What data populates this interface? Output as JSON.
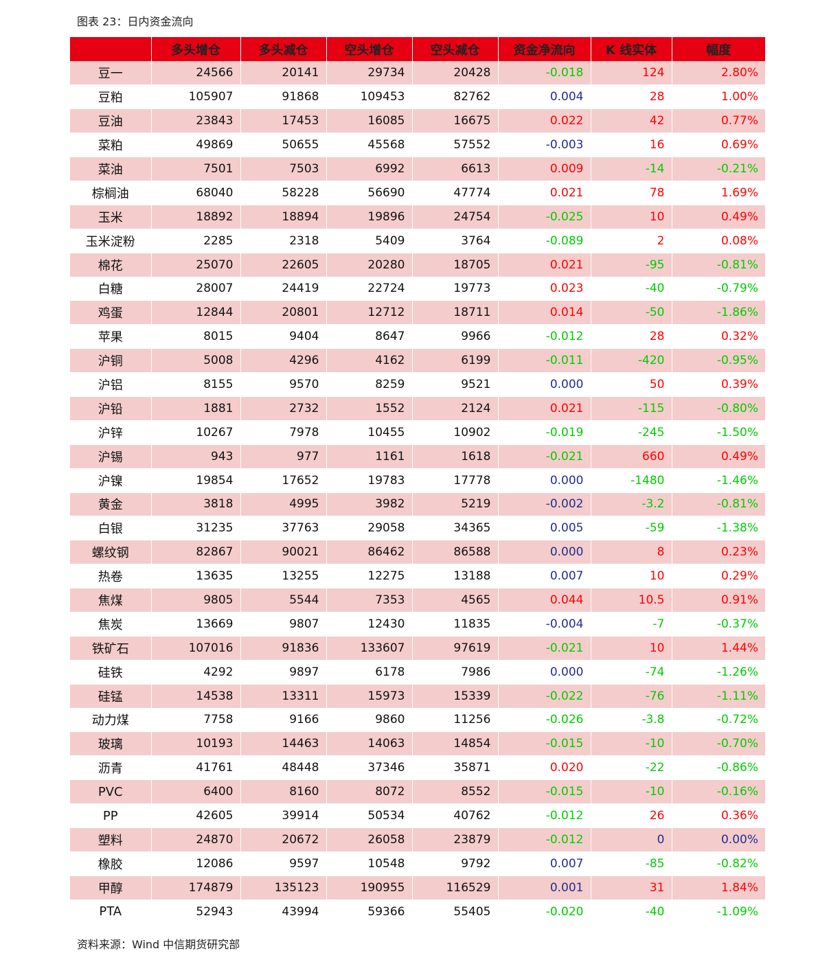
{
  "title": "图表 23：日内资金流向",
  "footer": "资料来源：Wind 中信期货研究部",
  "table": {
    "header": [
      "多头增仓",
      "多头减仓",
      "空头增仓",
      "空头减仓",
      "资金净流向",
      "K 线实体",
      "幅度"
    ],
    "header_color": "#e60012",
    "band_color": "#f4cccc",
    "rows": [
      [
        "豆一",
        "24566",
        "20141",
        "29734",
        "20428",
        "-0.018",
        "124",
        "2.80%"
      ],
      [
        "豆粕",
        "105907",
        "91868",
        "109453",
        "82762",
        "0.004",
        "28",
        "1.00%"
      ],
      [
        "豆油",
        "23843",
        "17453",
        "16085",
        "16675",
        "0.022",
        "42",
        "0.77%"
      ],
      [
        "菜粕",
        "49869",
        "50655",
        "45568",
        "57552",
        "-0.003",
        "16",
        "0.69%"
      ],
      [
        "菜油",
        "7501",
        "7503",
        "6992",
        "6613",
        "0.009",
        "-14",
        "-0.21%"
      ],
      [
        "棕榈油",
        "68040",
        "58228",
        "56690",
        "47774",
        "0.021",
        "78",
        "1.69%"
      ],
      [
        "玉米",
        "18892",
        "18894",
        "19896",
        "24754",
        "-0.025",
        "10",
        "0.49%"
      ],
      [
        "玉米淀粉",
        "2285",
        "2318",
        "5409",
        "3764",
        "-0.089",
        "2",
        "0.08%"
      ],
      [
        "棉花",
        "25070",
        "22605",
        "20280",
        "18705",
        "0.021",
        "-95",
        "-0.81%"
      ],
      [
        "白糖",
        "28007",
        "24419",
        "22724",
        "19773",
        "0.023",
        "-40",
        "-0.79%"
      ],
      [
        "鸡蛋",
        "12844",
        "20801",
        "12712",
        "18711",
        "0.014",
        "-50",
        "-1.86%"
      ],
      [
        "苹果",
        "8015",
        "9404",
        "8647",
        "9966",
        "-0.012",
        "28",
        "0.32%"
      ],
      [
        "沪铜",
        "5008",
        "4296",
        "4162",
        "6199",
        "-0.011",
        "-420",
        "-0.95%"
      ],
      [
        "沪铝",
        "8155",
        "9570",
        "8259",
        "9521",
        "0.000",
        "50",
        "0.39%"
      ],
      [
        "沪铅",
        "1881",
        "2732",
        "1552",
        "2124",
        "0.021",
        "-115",
        "-0.80%"
      ],
      [
        "沪锌",
        "10267",
        "7978",
        "10455",
        "10902",
        "-0.019",
        "-245",
        "-1.50%"
      ],
      [
        "沪锡",
        "943",
        "977",
        "1161",
        "1618",
        "-0.021",
        "660",
        "0.49%"
      ],
      [
        "沪镍",
        "19854",
        "17652",
        "19783",
        "17778",
        "0.000",
        "-1480",
        "-1.46%"
      ],
      [
        "黄金",
        "3818",
        "4995",
        "3982",
        "5219",
        "-0.002",
        "-3.2",
        "-0.81%"
      ],
      [
        "白银",
        "31235",
        "37763",
        "29058",
        "34365",
        "0.005",
        "-59",
        "-1.38%"
      ],
      [
        "螺纹钢",
        "82867",
        "90021",
        "86462",
        "86588",
        "0.000",
        "8",
        "0.23%"
      ],
      [
        "热卷",
        "13635",
        "13255",
        "12275",
        "13188",
        "0.007",
        "10",
        "0.29%"
      ],
      [
        "焦煤",
        "9805",
        "5544",
        "7353",
        "4565",
        "0.044",
        "10.5",
        "0.91%"
      ],
      [
        "焦炭",
        "13669",
        "9807",
        "12430",
        "11835",
        "-0.004",
        "-7",
        "-0.37%"
      ],
      [
        "铁矿石",
        "107016",
        "91836",
        "133607",
        "97619",
        "-0.021",
        "10",
        "1.44%"
      ],
      [
        "硅铁",
        "4292",
        "9897",
        "6178",
        "7986",
        "0.000",
        "-74",
        "-1.26%"
      ],
      [
        "硅锰",
        "14538",
        "13311",
        "15973",
        "15339",
        "-0.022",
        "-76",
        "-1.11%"
      ],
      [
        "动力煤",
        "7758",
        "9166",
        "9860",
        "11256",
        "-0.026",
        "-3.8",
        "-0.72%"
      ],
      [
        "玻璃",
        "10193",
        "14463",
        "14063",
        "14854",
        "-0.015",
        "-10",
        "-0.70%"
      ],
      [
        "沥青",
        "41761",
        "48448",
        "37346",
        "35871",
        "0.020",
        "-22",
        "-0.86%"
      ],
      [
        "PVC",
        "6400",
        "8160",
        "8072",
        "8552",
        "-0.015",
        "-10",
        "-0.16%"
      ],
      [
        "PP",
        "42605",
        "39914",
        "50534",
        "40762",
        "-0.012",
        "26",
        "0.36%"
      ],
      [
        "塑料",
        "24870",
        "20672",
        "26058",
        "23879",
        "-0.012",
        "0",
        "0.00%"
      ],
      [
        "橡胶",
        "12086",
        "9597",
        "10548",
        "9792",
        "0.007",
        "-85",
        "-0.82%"
      ],
      [
        "甲醇",
        "174879",
        "135123",
        "190955",
        "116529",
        "0.001",
        "31",
        "1.84%"
      ],
      [
        "PTA",
        "52943",
        "43994",
        "59366",
        "55405",
        "-0.020",
        "-40",
        "-1.09%"
      ]
    ],
    "row_colors": [
      [
        "#00cc00",
        "#ff0000",
        "#ff0000"
      ],
      [
        "#1f2f8f",
        "#ff0000",
        "#ff0000"
      ],
      [
        "#ff0000",
        "#ff0000",
        "#ff0000"
      ],
      [
        "#1f2f8f",
        "#ff0000",
        "#ff0000"
      ],
      [
        "#ff0000",
        "#00cc00",
        "#00cc00"
      ],
      [
        "#ff0000",
        "#ff0000",
        "#ff0000"
      ],
      [
        "#00cc00",
        "#ff0000",
        "#ff0000"
      ],
      [
        "#00cc00",
        "#ff0000",
        "#ff0000"
      ],
      [
        "#ff0000",
        "#00cc00",
        "#00cc00"
      ],
      [
        "#ff0000",
        "#00cc00",
        "#00cc00"
      ],
      [
        "#ff0000",
        "#00cc00",
        "#00cc00"
      ],
      [
        "#00cc00",
        "#ff0000",
        "#ff0000"
      ],
      [
        "#00cc00",
        "#00cc00",
        "#00cc00"
      ],
      [
        "#1f2f8f",
        "#ff0000",
        "#ff0000"
      ],
      [
        "#ff0000",
        "#00cc00",
        "#00cc00"
      ],
      [
        "#00cc00",
        "#00cc00",
        "#00cc00"
      ],
      [
        "#00cc00",
        "#ff0000",
        "#ff0000"
      ],
      [
        "#1f2f8f",
        "#00cc00",
        "#00cc00"
      ],
      [
        "#1f2f8f",
        "#00cc00",
        "#00cc00"
      ],
      [
        "#1f2f8f",
        "#00cc00",
        "#00cc00"
      ],
      [
        "#1f2f8f",
        "#ff0000",
        "#ff0000"
      ],
      [
        "#1f2f8f",
        "#ff0000",
        "#ff0000"
      ],
      [
        "#ff0000",
        "#ff0000",
        "#ff0000"
      ],
      [
        "#1f2f8f",
        "#00cc00",
        "#00cc00"
      ],
      [
        "#00cc00",
        "#ff0000",
        "#ff0000"
      ],
      [
        "#1f2f8f",
        "#00cc00",
        "#00cc00"
      ],
      [
        "#00cc00",
        "#00cc00",
        "#00cc00"
      ],
      [
        "#00cc00",
        "#00cc00",
        "#00cc00"
      ],
      [
        "#00cc00",
        "#00cc00",
        "#00cc00"
      ],
      [
        "#ff0000",
        "#00cc00",
        "#00cc00"
      ],
      [
        "#00cc00",
        "#00cc00",
        "#00cc00"
      ],
      [
        "#00cc00",
        "#ff0000",
        "#ff0000"
      ],
      [
        "#00cc00",
        "#1f2f8f",
        "#1f2f8f"
      ],
      [
        "#1f2f8f",
        "#00cc00",
        "#00cc00"
      ],
      [
        "#1f2f8f",
        "#ff0000",
        "#ff0000"
      ],
      [
        "#00cc00",
        "#00cc00",
        "#00cc00"
      ]
    ]
  }
}
